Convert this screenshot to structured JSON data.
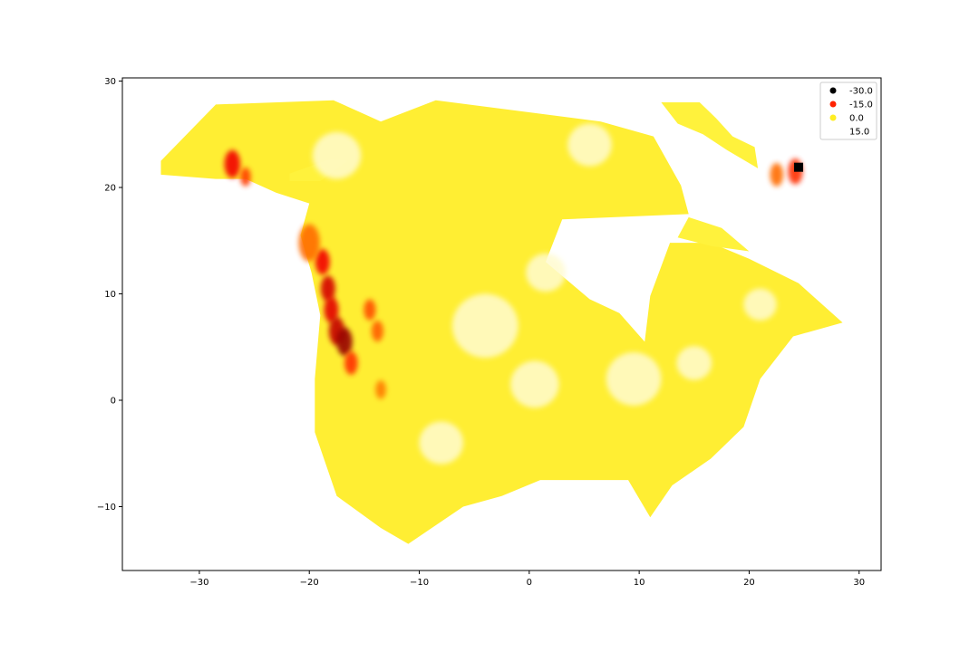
{
  "chart_data": {
    "type": "heatmap",
    "title": "",
    "xlabel": "",
    "ylabel": "",
    "xlim": [
      -37,
      32
    ],
    "ylim": [
      -16,
      30.3
    ],
    "x_ticks": [
      -30,
      -20,
      -10,
      0,
      10,
      20,
      30
    ],
    "x_tick_labels": [
      "−30",
      "−20",
      "−10",
      "0",
      "10",
      "20",
      "30"
    ],
    "y_ticks": [
      -10,
      0,
      10,
      20,
      30
    ],
    "y_tick_labels": [
      "−10",
      "0",
      "10",
      "20",
      "30"
    ],
    "grid": false,
    "legend_position": "top-right",
    "colormap": "hot",
    "legend": [
      {
        "label": "-30.0",
        "value": -30,
        "color": "#000000"
      },
      {
        "label": "-15.0",
        "value": -15,
        "color": "#ff2200"
      },
      {
        "label": "0.0",
        "value": 0,
        "color": "#ffee22"
      },
      {
        "label": "15.0",
        "value": 15,
        "color": "#ffffff"
      }
    ],
    "region_outline": [
      [
        -33.5,
        22.5
      ],
      [
        -28.5,
        27.8
      ],
      [
        -17.8,
        28.2
      ],
      [
        -13.5,
        26.2
      ],
      [
        -8.5,
        28.2
      ],
      [
        6.5,
        26.2
      ],
      [
        11.3,
        24.8
      ],
      [
        13.8,
        20.2
      ],
      [
        14.5,
        17.5
      ],
      [
        3.0,
        17.0
      ],
      [
        1.5,
        13.0
      ],
      [
        5.5,
        9.5
      ],
      [
        8.2,
        8.2
      ],
      [
        10.5,
        5.5
      ],
      [
        11.0,
        9.8
      ],
      [
        12.8,
        14.8
      ],
      [
        16.5,
        14.8
      ],
      [
        20.0,
        13.3
      ],
      [
        24.5,
        11.0
      ],
      [
        28.5,
        7.3
      ],
      [
        24.0,
        6.0
      ],
      [
        21.0,
        2.0
      ],
      [
        19.5,
        -2.5
      ],
      [
        16.5,
        -5.5
      ],
      [
        13.0,
        -8.0
      ],
      [
        11.0,
        -11.0
      ],
      [
        9.0,
        -7.5
      ],
      [
        1.0,
        -7.5
      ],
      [
        -2.5,
        -9.0
      ],
      [
        -6.0,
        -10.0
      ],
      [
        -11.0,
        -13.5
      ],
      [
        -13.5,
        -12.0
      ],
      [
        -17.5,
        -9.0
      ],
      [
        -19.5,
        -3.0
      ],
      [
        -19.5,
        2.0
      ],
      [
        -19.0,
        8.0
      ],
      [
        -19.8,
        12.0
      ],
      [
        -20.8,
        15.5
      ],
      [
        -20.0,
        18.5
      ],
      [
        -23.0,
        19.5
      ],
      [
        -25.8,
        20.8
      ],
      [
        -28.5,
        20.8
      ],
      [
        -33.5,
        21.2
      ]
    ],
    "islands": [
      [
        [
          -21.8,
          21.3
        ],
        [
          -18.0,
          22.7
        ],
        [
          -16.5,
          22.5
        ],
        [
          -19.0,
          20.6
        ],
        [
          -21.8,
          20.6
        ]
      ],
      [
        [
          12.0,
          28.0
        ],
        [
          15.5,
          28.0
        ],
        [
          17.0,
          26.5
        ],
        [
          18.5,
          24.8
        ],
        [
          20.5,
          23.8
        ],
        [
          20.8,
          21.8
        ],
        [
          18.0,
          23.5
        ],
        [
          15.8,
          25.0
        ],
        [
          13.5,
          26.0
        ]
      ],
      [
        [
          14.5,
          17.2
        ],
        [
          17.5,
          16.2
        ],
        [
          20.0,
          14.0
        ],
        [
          16.5,
          14.5
        ],
        [
          13.5,
          15.3
        ]
      ]
    ],
    "hotspots": [
      {
        "x": -18.8,
        "y": 13.0,
        "r": 0.55,
        "value": -14
      },
      {
        "x": -18.3,
        "y": 10.5,
        "r": 0.55,
        "value": -16
      },
      {
        "x": -18.0,
        "y": 8.5,
        "r": 0.55,
        "value": -15
      },
      {
        "x": -17.5,
        "y": 6.5,
        "r": 0.6,
        "value": -17
      },
      {
        "x": -16.8,
        "y": 5.5,
        "r": 0.6,
        "value": -20
      },
      {
        "x": -16.2,
        "y": 3.5,
        "r": 0.5,
        "value": -10
      },
      {
        "x": -14.5,
        "y": 8.5,
        "r": 0.45,
        "value": -8
      },
      {
        "x": -13.8,
        "y": 6.5,
        "r": 0.45,
        "value": -7
      },
      {
        "x": -13.5,
        "y": 1.0,
        "r": 0.4,
        "value": -5
      },
      {
        "x": -20.0,
        "y": 14.8,
        "r": 0.8,
        "value": -6
      },
      {
        "x": -27.0,
        "y": 22.2,
        "r": 0.6,
        "value": -14
      },
      {
        "x": -25.8,
        "y": 21.0,
        "r": 0.4,
        "value": -9
      },
      {
        "x": 22.5,
        "y": 21.2,
        "r": 0.5,
        "value": -6
      },
      {
        "x": 24.2,
        "y": 21.5,
        "r": 0.55,
        "value": -10
      },
      {
        "x": 24.5,
        "y": 21.9,
        "r": 0.35,
        "value": -30
      }
    ],
    "pale_patches": [
      {
        "x": -17.5,
        "y": 23.0,
        "r": 2.2
      },
      {
        "x": -4.0,
        "y": 7.0,
        "r": 3.0
      },
      {
        "x": 1.5,
        "y": 12.0,
        "r": 1.8
      },
      {
        "x": 9.5,
        "y": 2.0,
        "r": 2.5
      },
      {
        "x": 21.0,
        "y": 9.0,
        "r": 1.5
      },
      {
        "x": 0.5,
        "y": 1.5,
        "r": 2.2
      },
      {
        "x": -8.0,
        "y": -4.0,
        "r": 2.0
      },
      {
        "x": 5.5,
        "y": 24.0,
        "r": 2.0
      },
      {
        "x": 15.0,
        "y": 3.5,
        "r": 1.6
      }
    ]
  }
}
